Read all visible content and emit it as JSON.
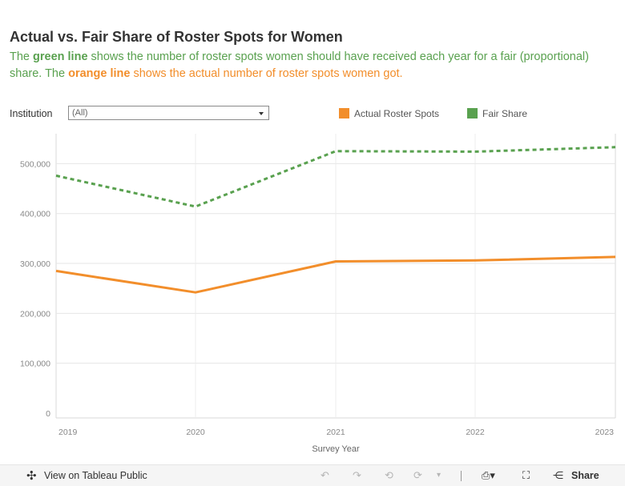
{
  "page": {
    "title": "Actual vs. Fair Share of Roster Spots for Women",
    "subtitle": {
      "p1": "The ",
      "green_bold": "green line",
      "p2": " shows the number of roster spots women should have received each year for a fair (proportional) share. The ",
      "orange_bold": "orange line",
      "p3": " shows the actual number of roster spots women got."
    }
  },
  "filter": {
    "label": "Institution",
    "value": "(All)"
  },
  "colors": {
    "green": "#59a14f",
    "orange": "#f28e2b",
    "grid": "#e6e6e6",
    "axis_text": "#888888"
  },
  "chart_data": {
    "type": "line",
    "x": [
      "2019",
      "2020",
      "2021",
      "2022",
      "2023"
    ],
    "xlabel": "Survey Year",
    "ylabel": "",
    "ylim": [
      0,
      560000
    ],
    "yticks": [
      0,
      100000,
      200000,
      300000,
      400000,
      500000
    ],
    "ytick_labels": [
      "0",
      "100,000",
      "200,000",
      "300,000",
      "400,000",
      "500,000"
    ],
    "grid": true,
    "legend_position": "top",
    "series": [
      {
        "name": "Actual Roster Spots",
        "color": "#f28e2b",
        "style": "solid",
        "values": [
          285000,
          242000,
          304000,
          306000,
          313000
        ]
      },
      {
        "name": "Fair Share",
        "color": "#59a14f",
        "style": "dashed",
        "values": [
          476000,
          414000,
          525000,
          524000,
          533000
        ]
      }
    ]
  },
  "toolbar": {
    "view_label": "View on Tableau Public",
    "share_label": "Share",
    "icons": [
      "tableau-logo-icon",
      "undo-icon",
      "redo-icon",
      "revert-icon",
      "refresh-icon",
      "pause-icon",
      "download-icon",
      "fullscreen-icon",
      "share-icon"
    ]
  }
}
